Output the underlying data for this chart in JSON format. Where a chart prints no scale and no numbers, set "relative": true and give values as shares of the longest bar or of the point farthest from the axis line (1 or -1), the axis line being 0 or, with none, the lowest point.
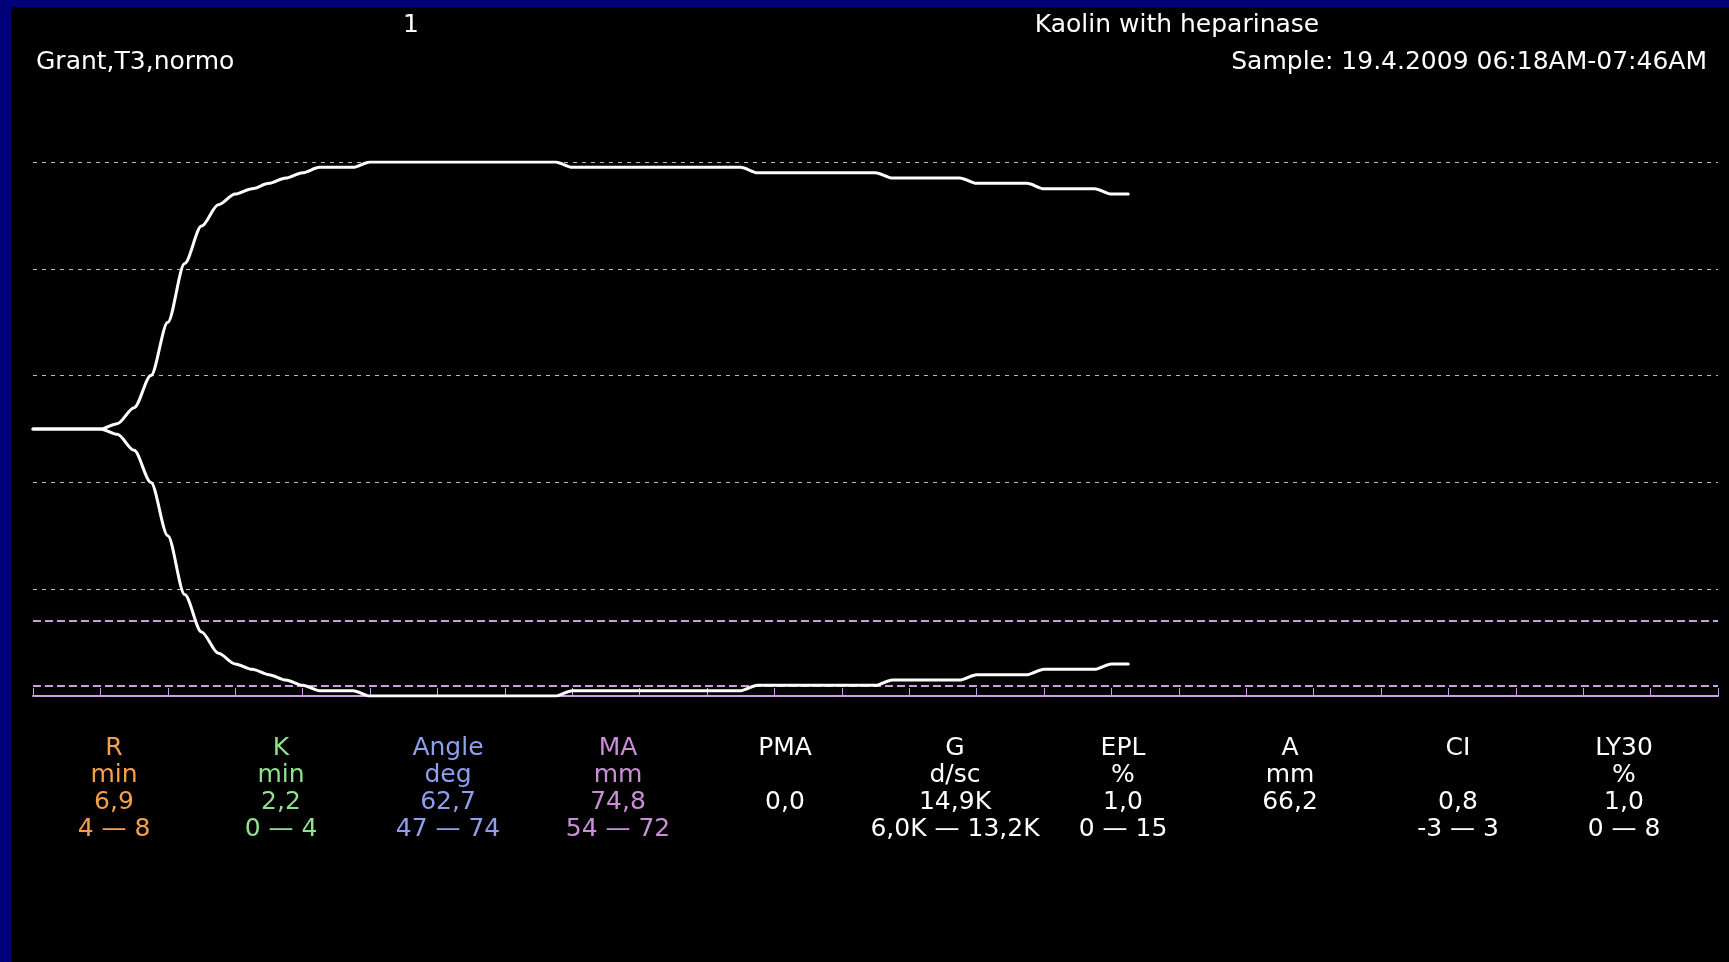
{
  "chart_data": {
    "type": "line",
    "relative": true,
    "title": "Kaolin with heparinase",
    "subtitle": "Sample: 19.4.2009 06:18AM-07:46AM",
    "categories": [
      null,
      null,
      null,
      null,
      null,
      null,
      null,
      null,
      null,
      null,
      null,
      null,
      null,
      null,
      null,
      null,
      null,
      null,
      null,
      null,
      null,
      null,
      null,
      null,
      null,
      null,
      null,
      null,
      null,
      null,
      null,
      null,
      null,
      null,
      null,
      null,
      null,
      null,
      null,
      null,
      null,
      null,
      null,
      null,
      null,
      null,
      null,
      null,
      null,
      null,
      null,
      null,
      null,
      null,
      null,
      null,
      null,
      null,
      null,
      null,
      null,
      null,
      null,
      null,
      null,
      null,
      null,
      null,
      null,
      null,
      null,
      null,
      null,
      null,
      null,
      null,
      null,
      null,
      null,
      null,
      null,
      null,
      null,
      null,
      null,
      null,
      null,
      null,
      null,
      null,
      null,
      null,
      null,
      null,
      null,
      null,
      null,
      null,
      null,
      null,
      null
    ],
    "series": [
      {
        "color": "#ffffff",
        "values": [
          0.5,
          0.5,
          0.5,
          0.5,
          0.5,
          0.51,
          0.54,
          0.6,
          0.7,
          0.81,
          0.88,
          0.92,
          0.94,
          0.95,
          0.96,
          0.97,
          0.98,
          0.99,
          0.99,
          0.99,
          1,
          1,
          1,
          1,
          1,
          1,
          1,
          1,
          1,
          1,
          1,
          1,
          0.99,
          0.99,
          0.99,
          0.99,
          0.99,
          0.99,
          0.99,
          0.99,
          0.99,
          0.99,
          0.99,
          0.98,
          0.98,
          0.98,
          0.98,
          0.98,
          0.98,
          0.98,
          0.98,
          0.97,
          0.97,
          0.97,
          0.97,
          0.97,
          0.96,
          0.96,
          0.96,
          0.96,
          0.95,
          0.95,
          0.95,
          0.95,
          0.94,
          0.94,
          null,
          null,
          null,
          null,
          null,
          null,
          null,
          null,
          null,
          null,
          null,
          null,
          null,
          null,
          null,
          null,
          null,
          null,
          null,
          null,
          null,
          null,
          null,
          null,
          null,
          null,
          null,
          null,
          null,
          null,
          null,
          null,
          null,
          null,
          null
        ]
      },
      {
        "color": "#ffffff",
        "values": [
          0.5,
          0.5,
          0.5,
          0.5,
          0.5,
          0.49,
          0.46,
          0.4,
          0.3,
          0.19,
          0.12,
          0.08,
          0.06,
          0.05,
          0.04,
          0.03,
          0.02,
          0.01,
          0.01,
          0.01,
          0,
          0,
          0,
          0,
          0,
          0,
          0,
          0,
          0,
          0,
          0,
          0,
          0.01,
          0.01,
          0.01,
          0.01,
          0.01,
          0.01,
          0.01,
          0.01,
          0.01,
          0.01,
          0.01,
          0.02,
          0.02,
          0.02,
          0.02,
          0.02,
          0.02,
          0.02,
          0.02,
          0.03,
          0.03,
          0.03,
          0.03,
          0.03,
          0.04,
          0.04,
          0.04,
          0.04,
          0.05,
          0.05,
          0.05,
          0.05,
          0.06,
          0.06,
          null,
          null,
          null,
          null,
          null,
          null,
          null,
          null,
          null,
          null,
          null,
          null,
          null,
          null,
          null,
          null,
          null,
          null,
          null,
          null,
          null,
          null,
          null,
          null,
          null,
          null,
          null,
          null,
          null,
          null,
          null,
          null,
          null,
          null,
          null
        ]
      }
    ],
    "ref_lines": [
      {
        "axis": "y",
        "value": 0.14,
        "color": "#c9a0dc",
        "line_style": "dashed"
      },
      {
        "axis": "y",
        "value": 0.02,
        "color": "#c9a0dc",
        "line_style": "dashed"
      }
    ],
    "grid": "y",
    "marker": "none",
    "line_style": "solid",
    "annotations": [
      "1",
      "Grant,T3,normo",
      "R\nmin\n6,9\n4 — 8",
      "K\nmin\n2,2\n0 — 4",
      "Angle\ndeg\n62,7\n47 — 74",
      "MA\nmm\n74,8\n54 — 72",
      "PMA\n\n0,0",
      "G\nd/sc\n14,9K\n6,0K — 13,2K",
      "EPL\n%\n1,0\n0 — 15",
      "A\nmm\n66,2",
      "CI\n\n0,8\n-3 — 3",
      "LY30\n%\n1,0\n0 — 8"
    ]
  }
}
